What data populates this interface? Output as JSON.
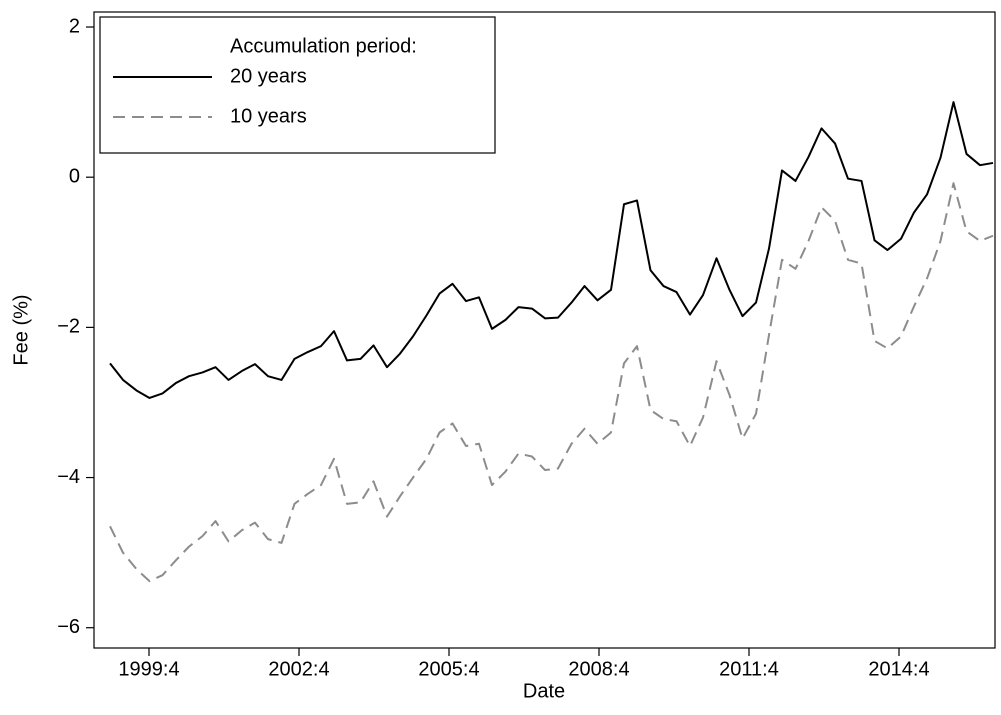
{
  "chart_data": {
    "type": "line",
    "x_label": "Date",
    "y_label": "Fee (%)",
    "legend_title": "Accumulation period:",
    "legend_position": "upper left",
    "xlim": [
      1998.65,
      2016.67
    ],
    "ylim": [
      -6.27,
      2.2
    ],
    "xticks": [
      {
        "value": 1999.75,
        "label": "1999:4"
      },
      {
        "value": 2002.75,
        "label": "2002:4"
      },
      {
        "value": 2005.75,
        "label": "2005:4"
      },
      {
        "value": 2008.75,
        "label": "2008:4"
      },
      {
        "value": 2011.75,
        "label": "2011:4"
      },
      {
        "value": 2014.75,
        "label": "2014:4"
      }
    ],
    "yticks": [
      {
        "value": -6,
        "label": "−6"
      },
      {
        "value": -4,
        "label": "−4"
      },
      {
        "value": -2,
        "label": "−2"
      },
      0,
      2
    ],
    "grid": false,
    "x": [
      1998.97,
      1999.23,
      1999.5,
      1999.76,
      2000.02,
      2000.29,
      2000.55,
      2000.82,
      2001.08,
      2001.34,
      2001.61,
      2001.87,
      2002.13,
      2002.4,
      2002.66,
      2002.92,
      2003.19,
      2003.45,
      2003.71,
      2003.98,
      2004.24,
      2004.51,
      2004.77,
      2005.03,
      2005.3,
      2005.56,
      2005.82,
      2006.09,
      2006.35,
      2006.61,
      2006.88,
      2007.14,
      2007.41,
      2007.67,
      2007.93,
      2008.2,
      2008.46,
      2008.72,
      2008.99,
      2009.25,
      2009.51,
      2009.78,
      2010.04,
      2010.3,
      2010.57,
      2010.83,
      2011.1,
      2011.36,
      2011.62,
      2011.89,
      2012.15,
      2012.41,
      2012.68,
      2012.94,
      2013.2,
      2013.47,
      2013.73,
      2014.0,
      2014.26,
      2014.52,
      2014.79,
      2015.05,
      2015.31,
      2015.58,
      2015.84,
      2016.1,
      2016.37,
      2016.63
    ],
    "series": [
      {
        "name": "20 years",
        "color": "#000000",
        "line_style": "solid",
        "values": [
          -2.48,
          -2.7,
          -2.84,
          -2.94,
          -2.88,
          -2.74,
          -2.65,
          -2.6,
          -2.53,
          -2.7,
          -2.58,
          -2.49,
          -2.65,
          -2.7,
          -2.42,
          -2.33,
          -2.25,
          -2.05,
          -2.44,
          -2.42,
          -2.24,
          -2.53,
          -2.35,
          -2.12,
          -1.84,
          -1.55,
          -1.42,
          -1.65,
          -1.6,
          -2.02,
          -1.9,
          -1.73,
          -1.75,
          -1.88,
          -1.87,
          -1.67,
          -1.45,
          -1.64,
          -1.5,
          -0.36,
          -0.31,
          -1.24,
          -1.45,
          -1.53,
          -1.83,
          -1.57,
          -1.08,
          -1.5,
          -1.85,
          -1.67,
          -0.95,
          0.09,
          -0.05,
          0.27,
          0.65,
          0.45,
          -0.02,
          -0.05,
          -0.84,
          -0.97,
          -0.82,
          -0.47,
          -0.23,
          0.26,
          1.0,
          0.31,
          0.16,
          0.19
        ]
      },
      {
        "name": "10 years",
        "color": "#8c8c8c",
        "line_style": "dashed",
        "values": [
          -4.65,
          -5.0,
          -5.22,
          -5.38,
          -5.3,
          -5.1,
          -4.92,
          -4.78,
          -4.58,
          -4.85,
          -4.7,
          -4.6,
          -4.82,
          -4.87,
          -4.35,
          -4.22,
          -4.1,
          -3.75,
          -4.35,
          -4.33,
          -4.05,
          -4.52,
          -4.25,
          -4.0,
          -3.75,
          -3.4,
          -3.28,
          -3.58,
          -3.55,
          -4.1,
          -3.92,
          -3.68,
          -3.72,
          -3.9,
          -3.88,
          -3.55,
          -3.35,
          -3.55,
          -3.4,
          -2.48,
          -2.25,
          -3.1,
          -3.22,
          -3.25,
          -3.58,
          -3.2,
          -2.45,
          -2.9,
          -3.48,
          -3.15,
          -2.1,
          -1.1,
          -1.22,
          -0.85,
          -0.4,
          -0.58,
          -1.1,
          -1.15,
          -2.18,
          -2.28,
          -2.12,
          -1.72,
          -1.35,
          -0.85,
          -0.08,
          -0.72,
          -0.85,
          -0.78
        ]
      }
    ]
  }
}
